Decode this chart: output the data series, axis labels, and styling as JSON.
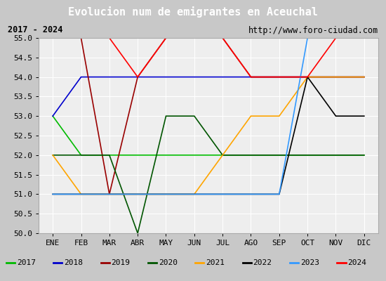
{
  "title": "Evolucion num de emigrantes en Aceuchal",
  "subtitle_left": "2017 - 2024",
  "subtitle_right": "http://www.foro-ciudad.com",
  "months": [
    "ENE",
    "FEB",
    "MAR",
    "ABR",
    "MAY",
    "JUN",
    "JUL",
    "AGO",
    "SEP",
    "OCT",
    "NOV",
    "DIC"
  ],
  "month_indices": [
    1,
    2,
    3,
    4,
    5,
    6,
    7,
    8,
    9,
    10,
    11,
    12
  ],
  "ylim": [
    50.0,
    55.0
  ],
  "yticks": [
    50.0,
    50.5,
    51.0,
    51.5,
    52.0,
    52.5,
    53.0,
    53.5,
    54.0,
    54.5,
    55.0
  ],
  "series": [
    {
      "label": "2017",
      "color": "#00bb00",
      "data": [
        53,
        52,
        52,
        52,
        52,
        52,
        52,
        52,
        52,
        52,
        52,
        52
      ]
    },
    {
      "label": "2018",
      "color": "#0000cc",
      "data": [
        53,
        54,
        54,
        54,
        54,
        54,
        54,
        54,
        54,
        54,
        54,
        54
      ]
    },
    {
      "label": "2019",
      "color": "#990000",
      "data": [
        55,
        55,
        51,
        54,
        55,
        55,
        55,
        54,
        54,
        54,
        54,
        54
      ]
    },
    {
      "label": "2020",
      "color": "#005500",
      "data": [
        52,
        52,
        52,
        50,
        53,
        53,
        52,
        52,
        52,
        52,
        52,
        52
      ]
    },
    {
      "label": "2021",
      "color": "#ffa500",
      "data": [
        52,
        51,
        51,
        51,
        51,
        51,
        52,
        53,
        53,
        54,
        54,
        54
      ]
    },
    {
      "label": "2022",
      "color": "#000000",
      "data": [
        51,
        51,
        51,
        51,
        51,
        51,
        51,
        51,
        51,
        54,
        53,
        53
      ]
    },
    {
      "label": "2023",
      "color": "#3399ff",
      "data": [
        51,
        51,
        51,
        51,
        51,
        51,
        51,
        51,
        51,
        55,
        55,
        55
      ]
    },
    {
      "label": "2024",
      "color": "#ff0000",
      "data": [
        55,
        55,
        55,
        54,
        55,
        55,
        55,
        54,
        54,
        54,
        55,
        55
      ]
    }
  ],
  "title_bg_color": "#4472c4",
  "title_font_color": "#ffffff",
  "plot_bg_color": "#eeeeee",
  "grid_color": "#ffffff",
  "outer_bg_color": "#c8c8c8",
  "subtitle_bg_color": "#e0e0e0",
  "legend_bg_color": "#f0f0f0",
  "title_fontsize": 11,
  "axis_fontsize": 8,
  "legend_fontsize": 8
}
